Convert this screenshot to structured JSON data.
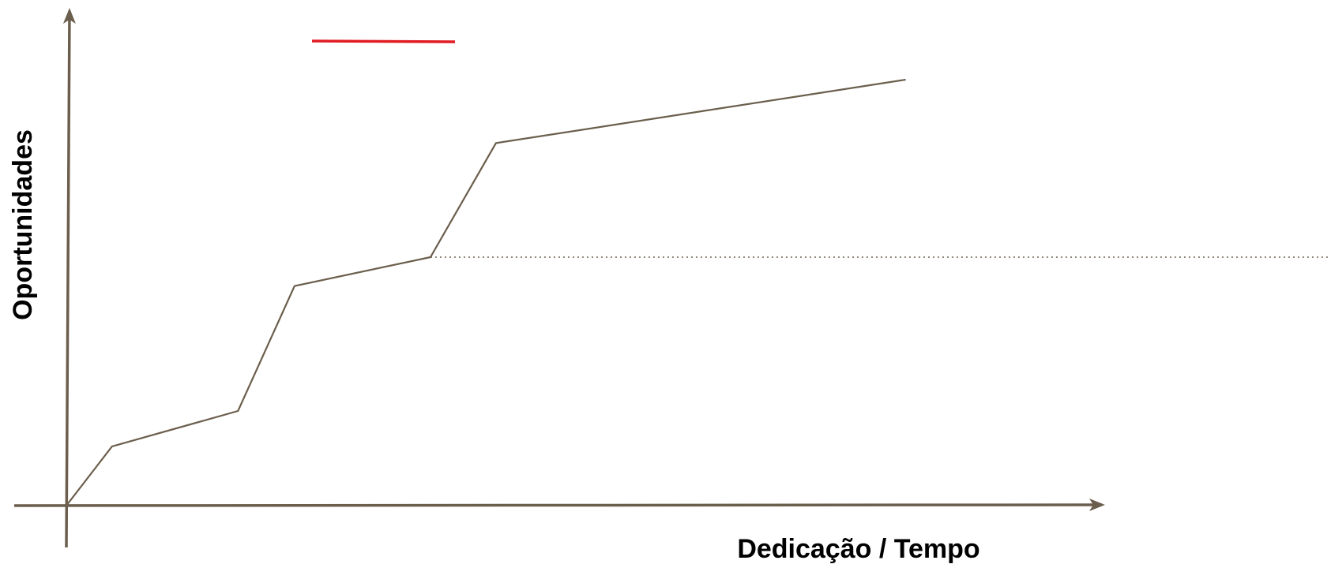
{
  "chart_data": {
    "type": "line",
    "xlabel": "Dedicação / Tempo",
    "ylabel": "Oportunidades",
    "xlim": [
      0,
      100
    ],
    "ylim": [
      0,
      100
    ],
    "grid": false,
    "axis_color": "#6b5e4c",
    "series": [
      {
        "color": "#6b5e4c",
        "points": [
          {
            "x": 0.0,
            "y": 0.0
          },
          {
            "x": 4.6,
            "y": 12.5
          },
          {
            "x": 17.3,
            "y": 20.0
          },
          {
            "x": 23.0,
            "y": 46.4
          },
          {
            "x": 36.7,
            "y": 52.5
          },
          {
            "x": 43.3,
            "y": 76.6
          },
          {
            "x": 84.6,
            "y": 90.0
          }
        ]
      }
    ],
    "reference_line": {
      "style": "dotted",
      "color": "#6b5e4c",
      "from_x": 36.7,
      "y": 52.5,
      "extends_to_edge": true
    },
    "legend_swatch": {
      "color": "#e11b22",
      "placement": "top-left"
    }
  }
}
